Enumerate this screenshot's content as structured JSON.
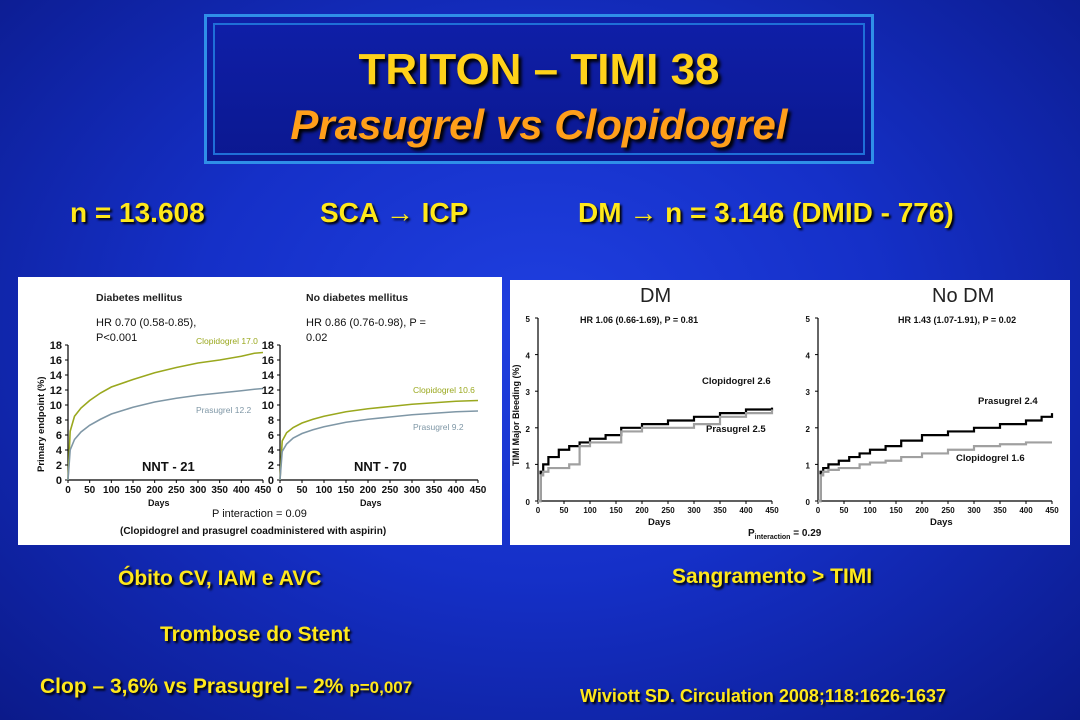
{
  "header": {
    "title": "TRITON – TIMI 38",
    "subtitle": "Prasugrel vs Clopidogrel"
  },
  "info": {
    "n": "n = 13.608",
    "sca": "SCA → ICP",
    "dm": "DM → n = 3.146 (DMID - 776)"
  },
  "left_panel": {
    "y_label": "Primary endpoint (%)",
    "x_label": "Days",
    "p_interaction": "P interaction = 0.09",
    "footnote": "(Clopidogrel and prasugrel coadministered with aspirin)",
    "y_ticks": [
      "18",
      "16",
      "14",
      "12",
      "10",
      "8",
      "6",
      "4",
      "2",
      "0"
    ],
    "x_ticks": [
      "0",
      "50",
      "100",
      "150",
      "200",
      "250",
      "300",
      "350",
      "400",
      "450"
    ]
  },
  "right_panel": {
    "y_label": "TIMI Major Bleeding (%)",
    "x_label": "Days",
    "p_interaction_prefix": "P",
    "p_interaction_sub": "interaction",
    "p_interaction_value": " = 0.29",
    "y_ticks": [
      "5",
      "4",
      "3",
      "2",
      "1",
      "0"
    ],
    "x_ticks": [
      "0",
      "50",
      "100",
      "150",
      "200",
      "250",
      "300",
      "350",
      "400",
      "450"
    ]
  },
  "chart_data": [
    {
      "type": "line",
      "title": "Diabetes mellitus",
      "hr_text": "HR 0.70 (0.58-0.85),",
      "p_text": "P<0.001",
      "nnt": "NNT - 21",
      "xlabel": "Days",
      "ylabel": "Primary endpoint (%)",
      "xlim": [
        0,
        450
      ],
      "ylim": [
        0,
        18
      ],
      "series": [
        {
          "name": "Clopidogrel 17.0",
          "color": "#9aa81e",
          "x": [
            0,
            5,
            15,
            30,
            50,
            75,
            100,
            150,
            200,
            250,
            300,
            350,
            400,
            430,
            450
          ],
          "y": [
            0,
            6.5,
            8.5,
            9.6,
            10.6,
            11.6,
            12.4,
            13.4,
            14.3,
            15.0,
            15.6,
            16.0,
            16.5,
            16.9,
            17.0
          ]
        },
        {
          "name": "Prasugrel 12.2",
          "color": "#7f97a6",
          "x": [
            0,
            5,
            15,
            30,
            50,
            75,
            100,
            150,
            200,
            250,
            300,
            350,
            400,
            430,
            450
          ],
          "y": [
            0,
            4.0,
            5.4,
            6.4,
            7.3,
            8.1,
            8.8,
            9.7,
            10.4,
            10.9,
            11.3,
            11.6,
            11.9,
            12.1,
            12.2
          ]
        }
      ]
    },
    {
      "type": "line",
      "title": "No diabetes mellitus",
      "hr_text": "HR 0.86 (0.76-0.98), P =",
      "p_text": "0.02",
      "nnt": "NNT - 70",
      "xlabel": "Days",
      "ylabel": "",
      "xlim": [
        0,
        450
      ],
      "ylim": [
        0,
        18
      ],
      "series": [
        {
          "name": "Clopidogrel 10.6",
          "color": "#9aa81e",
          "x": [
            0,
            5,
            15,
            30,
            50,
            75,
            100,
            150,
            200,
            250,
            300,
            350,
            400,
            450
          ],
          "y": [
            0,
            5.2,
            6.3,
            7.0,
            7.6,
            8.1,
            8.5,
            9.1,
            9.5,
            9.8,
            10.1,
            10.3,
            10.5,
            10.6
          ]
        },
        {
          "name": "Prasugrel 9.2",
          "color": "#7f97a6",
          "x": [
            0,
            5,
            15,
            30,
            50,
            75,
            100,
            150,
            200,
            250,
            300,
            350,
            400,
            450
          ],
          "y": [
            0,
            3.8,
            4.8,
            5.6,
            6.2,
            6.7,
            7.1,
            7.7,
            8.1,
            8.4,
            8.7,
            8.9,
            9.1,
            9.2
          ]
        }
      ]
    },
    {
      "type": "line",
      "title": "DM",
      "hr_text": "HR 1.06 (0.66-1.69), P = 0.81",
      "xlabel": "Days",
      "ylabel": "TIMI Major Bleeding (%)",
      "xlim": [
        0,
        450
      ],
      "ylim": [
        0,
        5
      ],
      "series": [
        {
          "name": "Clopidogrel 2.6",
          "color": "#000000",
          "x": [
            0,
            5,
            10,
            20,
            40,
            60,
            80,
            100,
            130,
            160,
            200,
            250,
            300,
            350,
            400,
            450
          ],
          "y": [
            0,
            0.8,
            1.0,
            1.2,
            1.4,
            1.5,
            1.6,
            1.7,
            1.8,
            2.0,
            2.1,
            2.2,
            2.3,
            2.4,
            2.5,
            2.55
          ]
        },
        {
          "name": "Prasugrel 2.5",
          "color": "#a0a0a0",
          "x": [
            0,
            5,
            10,
            20,
            40,
            60,
            80,
            100,
            130,
            160,
            200,
            250,
            300,
            350,
            400,
            450
          ],
          "y": [
            0,
            0.7,
            0.8,
            0.9,
            0.9,
            1.0,
            1.5,
            1.6,
            1.6,
            1.9,
            2.0,
            2.0,
            2.1,
            2.3,
            2.4,
            2.5
          ]
        }
      ]
    },
    {
      "type": "line",
      "title": "No DM",
      "hr_text": "HR 1.43 (1.07-1.91), P = 0.02",
      "xlabel": "Days",
      "ylabel": "",
      "xlim": [
        0,
        450
      ],
      "ylim": [
        0,
        5
      ],
      "series": [
        {
          "name": "Prasugrel 2.4",
          "color": "#000000",
          "x": [
            0,
            5,
            10,
            20,
            40,
            60,
            80,
            100,
            130,
            160,
            200,
            250,
            300,
            350,
            400,
            430,
            450
          ],
          "y": [
            0,
            0.8,
            0.9,
            1.0,
            1.1,
            1.2,
            1.3,
            1.4,
            1.5,
            1.65,
            1.8,
            1.9,
            2.0,
            2.1,
            2.2,
            2.3,
            2.4
          ]
        },
        {
          "name": "Clopidogrel 1.6",
          "color": "#a0a0a0",
          "x": [
            0,
            5,
            10,
            20,
            40,
            60,
            80,
            100,
            130,
            160,
            200,
            250,
            300,
            350,
            400,
            450
          ],
          "y": [
            0,
            0.7,
            0.8,
            0.85,
            0.9,
            0.9,
            1.0,
            1.05,
            1.1,
            1.2,
            1.3,
            1.4,
            1.5,
            1.55,
            1.6,
            1.6
          ]
        }
      ]
    }
  ],
  "captions": {
    "left": "Óbito CV, IAM e AVC",
    "right": "Sangramento > TIMI",
    "stent": "Trombose do Stent",
    "clop_prefix": "Clop – 3,6% vs Prasugrel – 2%",
    "clop_p": "p=0,007",
    "citation": "Wiviott SD. Circulation 2008;118:1626-1637"
  }
}
